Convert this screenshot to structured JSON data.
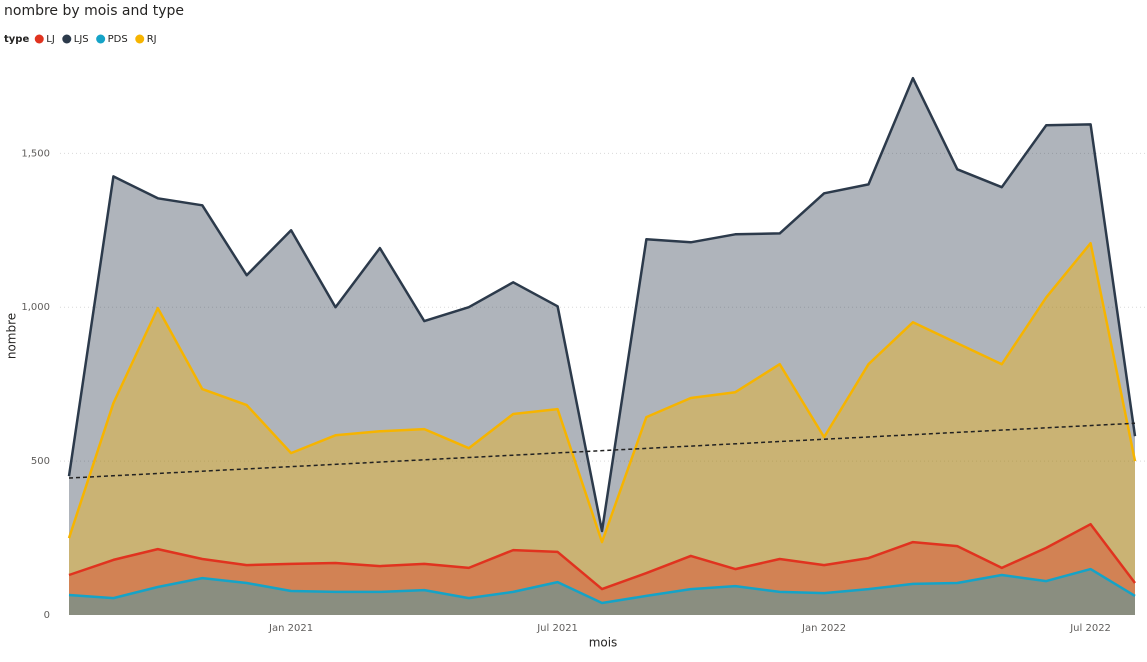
{
  "chart_data": {
    "type": "area",
    "title": "nombre by mois and type",
    "legend_title": "type",
    "x_label": "mois",
    "y_label": "nombre",
    "x": [
      "2020-08",
      "2020-09",
      "2020-10",
      "2020-11",
      "2020-12",
      "2021-01",
      "2021-02",
      "2021-03",
      "2021-04",
      "2021-05",
      "2021-06",
      "2021-07",
      "2021-08",
      "2021-09",
      "2021-10",
      "2021-11",
      "2021-12",
      "2022-01",
      "2022-02",
      "2022-03",
      "2022-04",
      "2022-05",
      "2022-06",
      "2022-07",
      "2022-08"
    ],
    "xticks": [
      {
        "value": "2021-01",
        "label": "Jan 2021"
      },
      {
        "value": "2021-07",
        "label": "Jul 2021"
      },
      {
        "value": "2022-01",
        "label": "Jan 2022"
      },
      {
        "value": "2022-07",
        "label": "Jul 2022"
      }
    ],
    "ylim": [
      0,
      1800
    ],
    "yticks": [
      0,
      500,
      {
        "value": 1000,
        "label": "1,000"
      },
      {
        "value": 1500,
        "label": "1,500"
      }
    ],
    "grid": true,
    "series": [
      {
        "name": "LJ",
        "color": "#e0331f",
        "values": [
          130,
          179,
          214,
          182,
          162,
          166,
          169,
          159,
          166,
          153,
          211,
          205,
          84,
          136,
          192,
          149,
          182,
          162,
          185,
          237,
          224,
          153,
          218,
          295,
          104
        ]
      },
      {
        "name": "LJS",
        "color": "#2c3a4b",
        "values": [
          451,
          1425,
          1354,
          1331,
          1104,
          1250,
          1000,
          1192,
          955,
          1000,
          1081,
          1003,
          273,
          1221,
          1211,
          1237,
          1240,
          1370,
          1399,
          1744,
          1448,
          1390,
          1591,
          1594,
          581
        ]
      },
      {
        "name": "PDS",
        "color": "#15a3c7",
        "values": [
          65,
          55,
          91,
          120,
          104,
          78,
          75,
          75,
          81,
          55,
          75,
          107,
          39,
          62,
          84,
          94,
          75,
          71,
          84,
          101,
          104,
          130,
          110,
          149,
          62
        ]
      },
      {
        "name": "RJ",
        "color": "#f6b400",
        "values": [
          250,
          688,
          997,
          734,
          682,
          526,
          584,
          597,
          604,
          542,
          653,
          669,
          237,
          643,
          705,
          724,
          815,
          578,
          815,
          951,
          883,
          815,
          1032,
          1208,
          500
        ]
      }
    ],
    "draw_order": [
      1,
      3,
      0,
      2
    ],
    "trend": {
      "start": 445,
      "end": 623
    }
  }
}
